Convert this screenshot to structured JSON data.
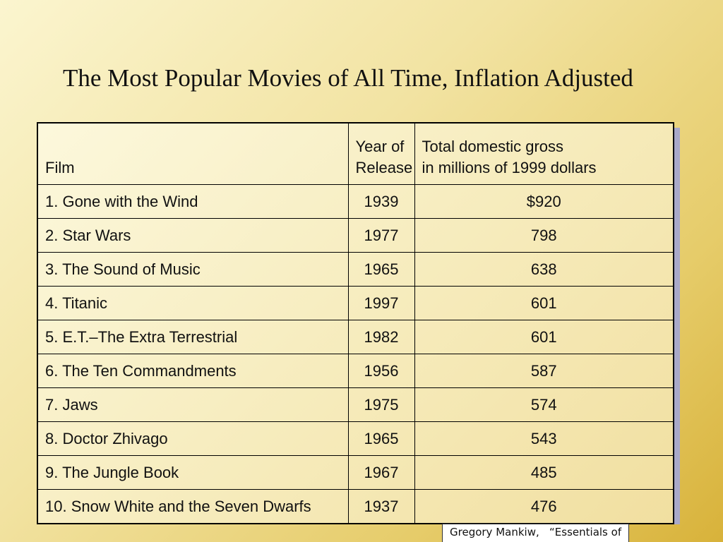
{
  "title": "The Most Popular Movies of All Time, Inflation Adjusted",
  "table": {
    "headers": {
      "film": "Film",
      "year_line1": "Year of",
      "year_line2": "Release",
      "gross_line1": "Total domestic gross",
      "gross_line2": "in millions of 1999 dollars"
    },
    "rows": [
      {
        "film": "1.  Gone with the Wind",
        "year": "1939",
        "gross": "$920"
      },
      {
        "film": "2.  Star Wars",
        "year": "1977",
        "gross": "798"
      },
      {
        "film": "3.  The Sound of Music",
        "year": "1965",
        "gross": "638"
      },
      {
        "film": "4.  Titanic",
        "year": "1997",
        "gross": "601"
      },
      {
        "film": "5.  E.T.–The Extra Terrestrial",
        "year": "1982",
        "gross": "601"
      },
      {
        "film": "6.  The Ten Commandments",
        "year": "1956",
        "gross": "587"
      },
      {
        "film": "7.  Jaws",
        "year": "1975",
        "gross": "574"
      },
      {
        "film": "8.  Doctor Zhivago",
        "year": "1965",
        "gross": "543"
      },
      {
        "film": "9.  The Jungle Book",
        "year": "1967",
        "gross": "485"
      },
      {
        "film": "10. Snow White and the Seven Dwarfs",
        "year": "1937",
        "gross": "476"
      }
    ]
  },
  "caption": "Gregory Mankiw,   “Essentials of",
  "colors": {
    "background_light": "#fbf5cf",
    "background_dark": "#d8b23a",
    "table_shadow": "#a9a9c9",
    "border": "#000000"
  }
}
